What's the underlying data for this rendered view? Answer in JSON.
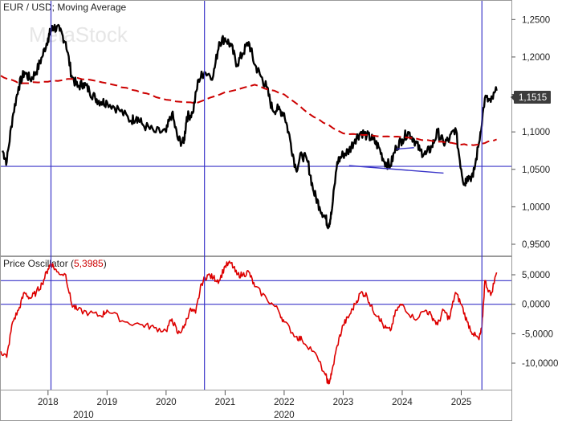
{
  "chart_data": [
    {
      "type": "line",
      "panel": "price",
      "title": "EUR / USD; Moving Average",
      "watermark": "MetaStock",
      "last_value_label": "1,1515",
      "y_ticks": [
        "1,2500",
        "1,2000",
        "1,1500",
        "1,1000",
        "1,0500",
        "1,0000",
        "0,9500"
      ],
      "y_tick_values": [
        1.25,
        1.2,
        1.15,
        1.1,
        1.05,
        1.0,
        0.95
      ],
      "ylim": [
        0.935,
        1.275
      ],
      "x_ticks": [
        "2018",
        "2019",
        "2020",
        "2021",
        "2022",
        "2023",
        "2024",
        "2025"
      ],
      "x_tick_values": [
        2018,
        2019,
        2020,
        2021,
        2022,
        2023,
        2024,
        2025
      ],
      "x_group_labels": [
        {
          "label": "2010",
          "x": 2018.6
        },
        {
          "label": "2020",
          "x": 2022.0
        }
      ],
      "xlim": [
        2017.2,
        2025.85
      ],
      "horizontal_lines": [
        1.054
      ],
      "vertical_lines": [
        2018.05,
        2020.65,
        2025.35
      ],
      "trendlines": [
        {
          "x": [
            2023.1,
            2024.7
          ],
          "y": [
            1.055,
            1.045
          ],
          "color": "#3a35c8"
        },
        {
          "x": [
            2023.9,
            2024.2
          ],
          "y": [
            1.077,
            1.079
          ],
          "color": "#3a35c8"
        }
      ],
      "series": [
        {
          "name": "EUR / USD",
          "color": "#000000",
          "x": [
            2017.23,
            2017.3,
            2017.4,
            2017.5,
            2017.6,
            2017.7,
            2017.8,
            2017.9,
            2018.0,
            2018.05,
            2018.1,
            2018.2,
            2018.3,
            2018.4,
            2018.5,
            2018.6,
            2018.7,
            2018.8,
            2018.9,
            2019.0,
            2019.2,
            2019.4,
            2019.5,
            2019.6,
            2019.8,
            2020.0,
            2020.1,
            2020.2,
            2020.3,
            2020.35,
            2020.45,
            2020.55,
            2020.65,
            2020.8,
            2020.9,
            2021.0,
            2021.1,
            2021.2,
            2021.3,
            2021.4,
            2021.5,
            2021.6,
            2021.7,
            2021.8,
            2021.9,
            2022.0,
            2022.1,
            2022.2,
            2022.3,
            2022.4,
            2022.5,
            2022.6,
            2022.7,
            2022.75,
            2022.8,
            2022.9,
            2023.0,
            2023.1,
            2023.2,
            2023.3,
            2023.4,
            2023.5,
            2023.6,
            2023.7,
            2023.8,
            2023.9,
            2024.0,
            2024.1,
            2024.2,
            2024.3,
            2024.4,
            2024.5,
            2024.6,
            2024.7,
            2024.8,
            2024.9,
            2025.0,
            2025.05,
            2025.1,
            2025.2,
            2025.3,
            2025.4,
            2025.5,
            2025.6
          ],
          "y": [
            1.075,
            1.06,
            1.12,
            1.16,
            1.18,
            1.17,
            1.18,
            1.2,
            1.225,
            1.235,
            1.24,
            1.235,
            1.22,
            1.175,
            1.16,
            1.165,
            1.155,
            1.145,
            1.14,
            1.14,
            1.13,
            1.115,
            1.12,
            1.11,
            1.1,
            1.1,
            1.125,
            1.09,
            1.085,
            1.12,
            1.125,
            1.17,
            1.18,
            1.175,
            1.22,
            1.225,
            1.215,
            1.19,
            1.205,
            1.22,
            1.19,
            1.175,
            1.16,
            1.13,
            1.13,
            1.125,
            1.09,
            1.05,
            1.07,
            1.06,
            1.02,
            1.0,
            0.985,
            0.975,
            0.99,
            1.06,
            1.07,
            1.075,
            1.09,
            1.1,
            1.095,
            1.09,
            1.08,
            1.06,
            1.055,
            1.08,
            1.09,
            1.1,
            1.09,
            1.075,
            1.07,
            1.08,
            1.1,
            1.085,
            1.09,
            1.105,
            1.05,
            1.03,
            1.04,
            1.04,
            1.085,
            1.145,
            1.14,
            1.155
          ]
        },
        {
          "name": "Moving Average",
          "color": "#cc0000",
          "dashed": true,
          "x": [
            2017.2,
            2017.5,
            2018.0,
            2018.5,
            2019.0,
            2019.5,
            2020.0,
            2020.5,
            2021.0,
            2021.5,
            2022.0,
            2022.5,
            2023.0,
            2023.5,
            2024.0,
            2024.5,
            2025.0,
            2025.3,
            2025.6
          ],
          "y": [
            1.175,
            1.165,
            1.167,
            1.172,
            1.165,
            1.155,
            1.143,
            1.138,
            1.153,
            1.163,
            1.15,
            1.12,
            1.098,
            1.095,
            1.093,
            1.088,
            1.083,
            1.083,
            1.09
          ]
        }
      ]
    },
    {
      "type": "line",
      "panel": "oscillator",
      "title": "Price Oscillator",
      "title_value": "5,3985",
      "y_ticks": [
        "5,0000",
        "0,0000",
        "-5,0000",
        "-10,0000"
      ],
      "y_tick_values": [
        5,
        0,
        -5,
        -10
      ],
      "ylim": [
        -14.5,
        8
      ],
      "horizontal_lines": [
        4,
        0
      ],
      "series": [
        {
          "name": "Price Oscillator",
          "color": "#dd0000",
          "x": [
            2017.2,
            2017.3,
            2017.4,
            2017.5,
            2017.6,
            2017.7,
            2017.8,
            2017.9,
            2018.0,
            2018.05,
            2018.15,
            2018.3,
            2018.4,
            2018.5,
            2018.7,
            2018.9,
            2019.0,
            2019.3,
            2019.6,
            2019.8,
            2020.0,
            2020.1,
            2020.2,
            2020.3,
            2020.4,
            2020.5,
            2020.6,
            2020.7,
            2020.8,
            2020.9,
            2021.0,
            2021.1,
            2021.2,
            2021.3,
            2021.4,
            2021.5,
            2021.7,
            2021.9,
            2022.0,
            2022.2,
            2022.3,
            2022.5,
            2022.7,
            2022.75,
            2022.8,
            2022.9,
            2023.0,
            2023.1,
            2023.2,
            2023.3,
            2023.4,
            2023.5,
            2023.6,
            2023.7,
            2023.8,
            2023.9,
            2024.0,
            2024.2,
            2024.4,
            2024.5,
            2024.6,
            2024.7,
            2024.8,
            2024.9,
            2025.0,
            2025.1,
            2025.2,
            2025.3,
            2025.35,
            2025.4,
            2025.5,
            2025.6
          ],
          "y": [
            -8,
            -9,
            -3,
            -1,
            2,
            1,
            2,
            3.5,
            6,
            7,
            5.5,
            5,
            0,
            -1,
            -1.5,
            -2,
            -1,
            -3,
            -3.5,
            -4,
            -4.5,
            -2.5,
            -5,
            -4,
            -1,
            -1.5,
            3.5,
            5,
            4.5,
            4,
            6.5,
            7,
            5,
            5,
            5.5,
            3,
            1,
            -1,
            -3,
            -5.5,
            -6,
            -8,
            -12,
            -13.5,
            -12,
            -7,
            -3.5,
            -2,
            0,
            2,
            1.5,
            -1,
            -2,
            -4,
            -4.5,
            -1,
            0,
            -2.5,
            -1,
            -2,
            -3.5,
            -1,
            -2.5,
            2,
            0,
            -3,
            -5,
            -6,
            -4,
            4,
            1.5,
            5.4
          ]
        }
      ]
    },
    {
      "type": "x-axis",
      "panel": "date_axis"
    }
  ]
}
